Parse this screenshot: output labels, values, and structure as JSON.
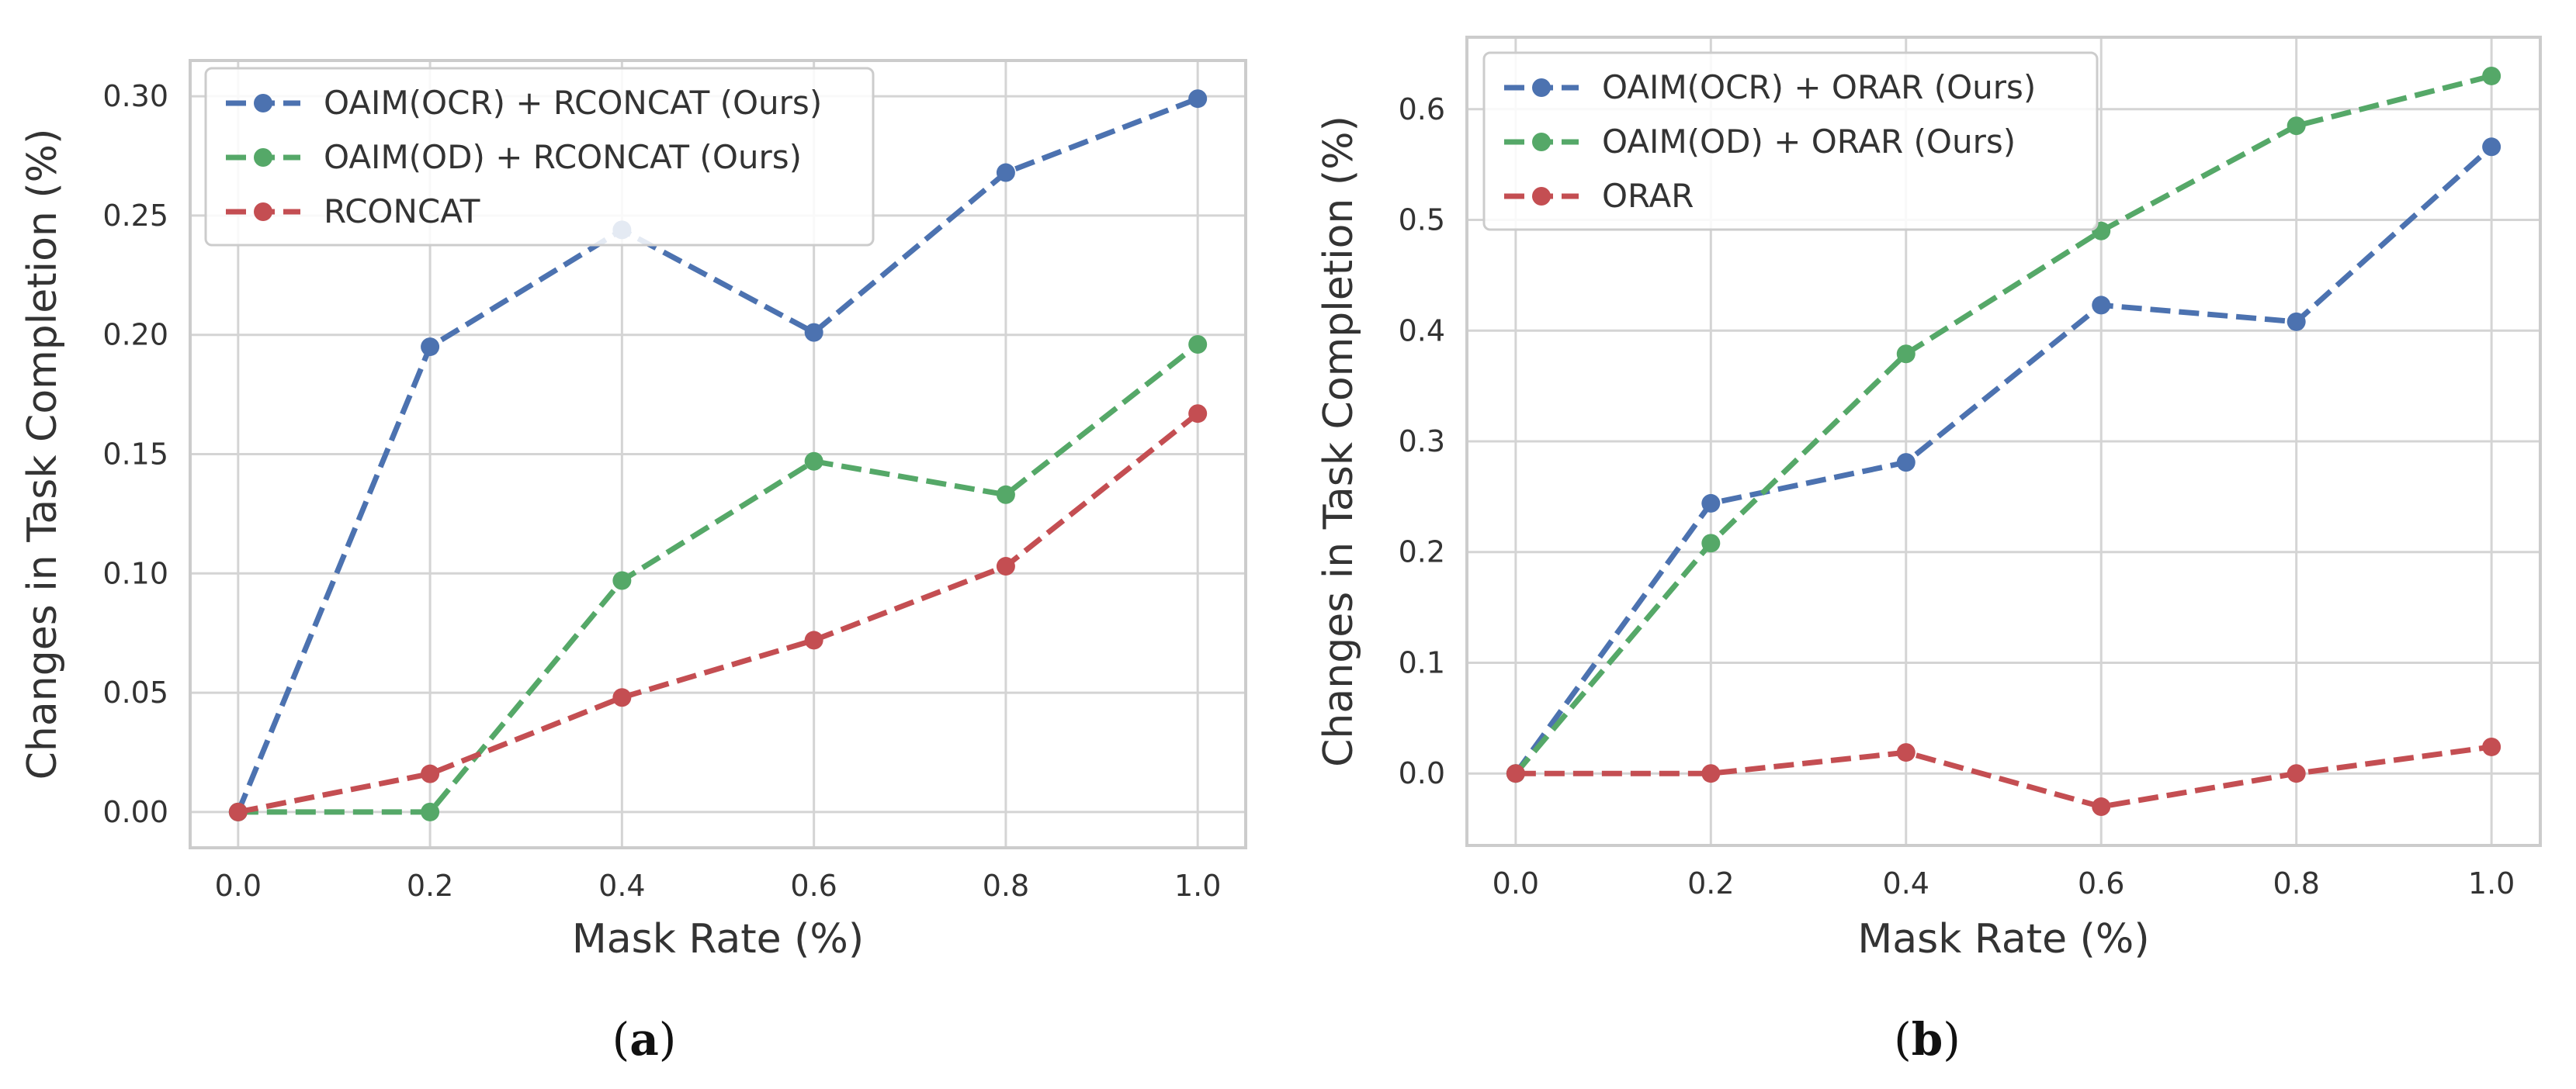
{
  "figure": {
    "panels": [
      "a",
      "b"
    ]
  },
  "chart_data": [
    {
      "type": "line",
      "panel": "a",
      "caption": "a",
      "xlabel": "Mask Rate (%)",
      "ylabel": "Changes in Task Completion (%)",
      "xlim": [
        -0.05,
        1.05
      ],
      "ylim": [
        -0.015,
        0.315
      ],
      "xticks": [
        0.0,
        0.2,
        0.4,
        0.6,
        0.8,
        1.0
      ],
      "xtick_labels": [
        "0.0",
        "0.2",
        "0.4",
        "0.6",
        "0.8",
        "1.0"
      ],
      "yticks": [
        0.0,
        0.05,
        0.1,
        0.15,
        0.2,
        0.25,
        0.3
      ],
      "ytick_labels": [
        "0.00",
        "0.05",
        "0.10",
        "0.15",
        "0.20",
        "0.25",
        "0.30"
      ],
      "grid": true,
      "legend_position": "top-left",
      "x": [
        0.0,
        0.2,
        0.4,
        0.6,
        0.8,
        1.0
      ],
      "series": [
        {
          "name": "OAIM(OCR) + RCONCAT (Ours)",
          "color": "#4C72B0",
          "values": [
            0.0,
            0.195,
            0.244,
            0.201,
            0.268,
            0.299
          ]
        },
        {
          "name": "OAIM(OD) + RCONCAT (Ours)",
          "color": "#55A868",
          "values": [
            0.0,
            0.0,
            0.097,
            0.147,
            0.133,
            0.196
          ]
        },
        {
          "name": "RCONCAT",
          "color": "#C44E52",
          "values": [
            0.0,
            0.016,
            0.048,
            0.072,
            0.103,
            0.167
          ]
        }
      ]
    },
    {
      "type": "line",
      "panel": "b",
      "caption": "b",
      "xlabel": "Mask Rate (%)",
      "ylabel": "Changes in Task Completion (%)",
      "xlim": [
        -0.05,
        1.05
      ],
      "ylim": [
        -0.065,
        0.665
      ],
      "xticks": [
        0.0,
        0.2,
        0.4,
        0.6,
        0.8,
        1.0
      ],
      "xtick_labels": [
        "0.0",
        "0.2",
        "0.4",
        "0.6",
        "0.8",
        "1.0"
      ],
      "yticks": [
        0.0,
        0.1,
        0.2,
        0.3,
        0.4,
        0.5,
        0.6
      ],
      "ytick_labels": [
        "0.0",
        "0.1",
        "0.2",
        "0.3",
        "0.4",
        "0.5",
        "0.6"
      ],
      "grid": true,
      "legend_position": "top-left",
      "x": [
        0.0,
        0.2,
        0.4,
        0.6,
        0.8,
        1.0
      ],
      "series": [
        {
          "name": "OAIM(OCR) + ORAR (Ours)",
          "color": "#4C72B0",
          "values": [
            0.0,
            0.244,
            0.281,
            0.423,
            0.408,
            0.566
          ]
        },
        {
          "name": "OAIM(OD) + ORAR (Ours)",
          "color": "#55A868",
          "values": [
            0.0,
            0.208,
            0.379,
            0.49,
            0.585,
            0.63
          ]
        },
        {
          "name": "ORAR",
          "color": "#C44E52",
          "values": [
            0.0,
            0.0,
            0.019,
            -0.03,
            0.0,
            0.024
          ]
        }
      ]
    }
  ]
}
